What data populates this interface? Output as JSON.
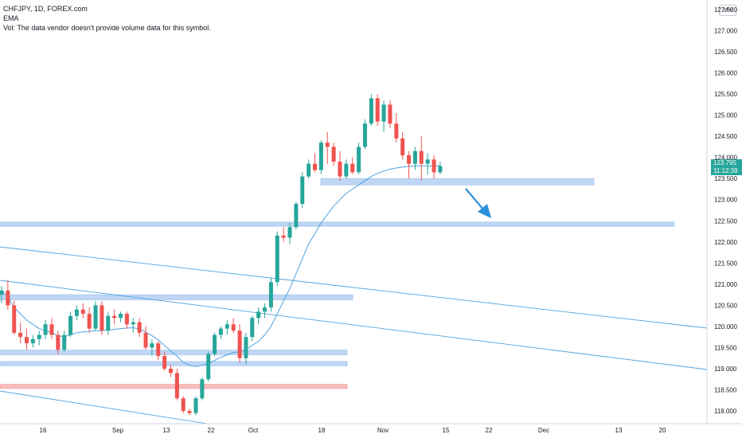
{
  "legend": {
    "symbol_line": "CHFJPY, 1D, FOREX.com",
    "ema_label": "EMA",
    "volume_note": "Vol: The data vendor doesn't provide volume data for this symbol."
  },
  "currency_badge": "JPY",
  "price_tag": {
    "price": "123.795",
    "countdown": "11:12:39"
  },
  "colors": {
    "up": "#26a69a",
    "down": "#ef5350",
    "ema": "#4fa3e0",
    "zone_blue": "#a9c8f0",
    "zone_red": "#f6a6a6",
    "trendline": "#4fa3e0",
    "arrow": "#2a8fd8"
  },
  "chart_data": {
    "type": "candlestick",
    "symbol": "CHFJPY",
    "interval": "1D",
    "ylim": [
      117.85,
      127.65
    ],
    "y_ticks": [
      "118.000",
      "118.500",
      "119.000",
      "119.500",
      "120.000",
      "120.500",
      "121.000",
      "121.500",
      "122.000",
      "122.500",
      "123.000",
      "123.500",
      "124.000",
      "124.500",
      "125.000",
      "125.500",
      "126.000",
      "126.500",
      "127.000",
      "127.500"
    ],
    "x_ticks": [
      "16",
      "Sep",
      "13",
      "22",
      "Oct",
      "18",
      "Nov",
      "15",
      "22",
      "Dec",
      "13",
      "20"
    ],
    "last_price": 123.795,
    "candles": [
      [
        120.75,
        120.95,
        120.55,
        120.85
      ],
      [
        120.85,
        121.1,
        120.4,
        120.5
      ],
      [
        120.5,
        120.6,
        119.8,
        119.85
      ],
      [
        119.85,
        120.1,
        119.6,
        119.75
      ],
      [
        119.75,
        119.95,
        119.45,
        119.6
      ],
      [
        119.6,
        119.8,
        119.5,
        119.7
      ],
      [
        119.7,
        119.9,
        119.55,
        119.8
      ],
      [
        119.8,
        120.15,
        119.7,
        120.05
      ],
      [
        120.05,
        120.2,
        119.7,
        119.8
      ],
      [
        119.8,
        119.9,
        119.35,
        119.45
      ],
      [
        119.45,
        119.9,
        119.4,
        119.8
      ],
      [
        119.8,
        120.35,
        119.75,
        120.25
      ],
      [
        120.25,
        120.5,
        120.15,
        120.4
      ],
      [
        120.4,
        120.55,
        120.2,
        120.3
      ],
      [
        120.3,
        120.45,
        119.85,
        119.95
      ],
      [
        119.95,
        120.6,
        119.9,
        120.5
      ],
      [
        120.5,
        120.6,
        119.8,
        119.9
      ],
      [
        119.9,
        120.35,
        119.8,
        120.25
      ],
      [
        120.25,
        120.4,
        120.05,
        120.2
      ],
      [
        120.2,
        120.35,
        120.1,
        120.3
      ],
      [
        120.3,
        120.35,
        119.95,
        120.05
      ],
      [
        120.05,
        120.2,
        119.85,
        120.1
      ],
      [
        120.1,
        120.2,
        119.75,
        119.85
      ],
      [
        119.85,
        120.0,
        119.45,
        119.5
      ],
      [
        119.5,
        119.7,
        119.3,
        119.6
      ],
      [
        119.6,
        119.65,
        119.2,
        119.3
      ],
      [
        119.3,
        119.4,
        118.95,
        119.0
      ],
      [
        119.0,
        119.1,
        118.8,
        118.9
      ],
      [
        118.9,
        119.0,
        118.25,
        118.3
      ],
      [
        118.3,
        118.35,
        117.95,
        118.0
      ],
      [
        118.0,
        118.05,
        117.9,
        117.95
      ],
      [
        117.95,
        118.35,
        117.9,
        118.3
      ],
      [
        118.3,
        118.8,
        118.25,
        118.75
      ],
      [
        118.75,
        119.4,
        118.7,
        119.35
      ],
      [
        119.35,
        119.85,
        119.3,
        119.8
      ],
      [
        119.8,
        120.0,
        119.7,
        119.95
      ],
      [
        119.95,
        120.15,
        119.8,
        120.05
      ],
      [
        120.05,
        120.2,
        119.85,
        119.9
      ],
      [
        119.9,
        120.05,
        119.15,
        119.25
      ],
      [
        119.25,
        119.85,
        119.1,
        119.75
      ],
      [
        119.75,
        120.25,
        119.65,
        120.2
      ],
      [
        120.2,
        120.45,
        120.05,
        120.35
      ],
      [
        120.35,
        120.55,
        120.2,
        120.45
      ],
      [
        120.45,
        121.15,
        120.35,
        121.05
      ],
      [
        121.05,
        122.25,
        120.95,
        122.15
      ],
      [
        122.15,
        122.35,
        122.0,
        122.1
      ],
      [
        122.1,
        122.45,
        121.95,
        122.35
      ],
      [
        122.35,
        122.95,
        122.3,
        122.9
      ],
      [
        122.9,
        123.65,
        122.8,
        123.55
      ],
      [
        123.55,
        123.95,
        123.5,
        123.85
      ],
      [
        123.85,
        124.1,
        123.65,
        123.7
      ],
      [
        123.7,
        124.4,
        123.6,
        124.35
      ],
      [
        124.35,
        124.6,
        123.85,
        124.25
      ],
      [
        124.25,
        124.35,
        123.8,
        123.9
      ],
      [
        123.9,
        124.15,
        123.45,
        123.55
      ],
      [
        123.55,
        123.95,
        123.5,
        123.85
      ],
      [
        123.85,
        124.0,
        123.6,
        123.65
      ],
      [
        123.65,
        124.35,
        123.6,
        124.25
      ],
      [
        124.25,
        124.9,
        124.2,
        124.8
      ],
      [
        124.8,
        125.5,
        124.75,
        125.4
      ],
      [
        125.4,
        125.5,
        124.75,
        124.85
      ],
      [
        124.85,
        125.35,
        124.6,
        125.25
      ],
      [
        125.25,
        125.35,
        124.7,
        124.8
      ],
      [
        124.8,
        125.05,
        124.35,
        124.45
      ],
      [
        124.45,
        124.6,
        123.95,
        124.05
      ],
      [
        124.05,
        124.15,
        123.5,
        123.85
      ],
      [
        123.85,
        124.25,
        123.7,
        124.15
      ],
      [
        124.15,
        124.5,
        123.45,
        123.85
      ],
      [
        123.85,
        124.1,
        123.6,
        123.95
      ],
      [
        123.95,
        124.05,
        123.5,
        123.65
      ],
      [
        123.65,
        123.9,
        123.6,
        123.795
      ]
    ],
    "ema_values": [
      120.85,
      120.7,
      120.45,
      120.3,
      120.15,
      120.05,
      119.95,
      119.9,
      119.85,
      119.78,
      119.76,
      119.8,
      119.85,
      119.87,
      119.88,
      119.9,
      119.9,
      119.92,
      119.93,
      119.95,
      119.96,
      119.97,
      119.94,
      119.87,
      119.78,
      119.68,
      119.55,
      119.42,
      119.3,
      119.15,
      119.08,
      119.05,
      119.08,
      119.12,
      119.2,
      119.27,
      119.33,
      119.38,
      119.4,
      119.45,
      119.55,
      119.65,
      119.8,
      120.0,
      120.3,
      120.6,
      120.9,
      121.25,
      121.6,
      121.95,
      122.2,
      122.45,
      122.65,
      122.85,
      123.0,
      123.15,
      123.25,
      123.35,
      123.45,
      123.55,
      123.62,
      123.68,
      123.72,
      123.75,
      123.77,
      123.79,
      123.8,
      123.8,
      123.8,
      123.8,
      123.8
    ]
  }
}
